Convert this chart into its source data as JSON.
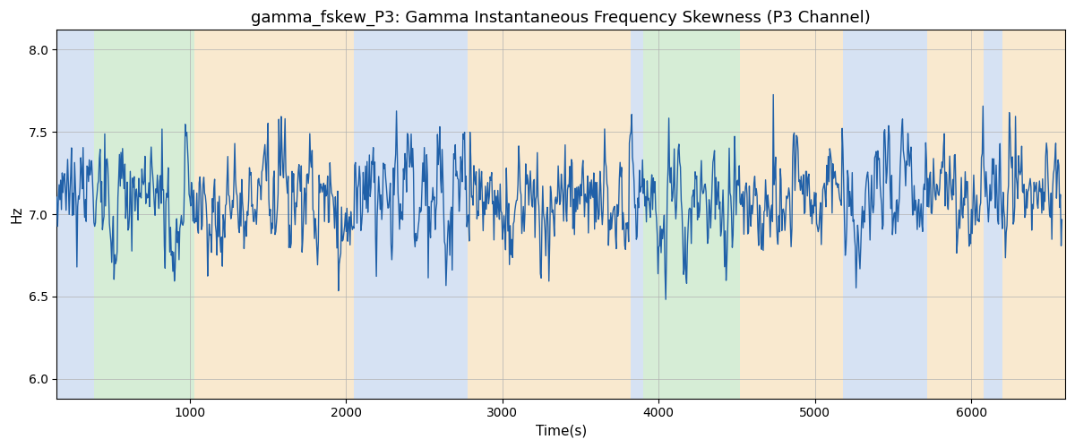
{
  "title": "gamma_fskew_P3: Gamma Instantaneous Frequency Skewness (P3 Channel)",
  "xlabel": "Time(s)",
  "ylabel": "Hz",
  "xlim": [
    150,
    6600
  ],
  "ylim": [
    5.88,
    8.12
  ],
  "yticks": [
    6.0,
    6.5,
    7.0,
    7.5,
    8.0
  ],
  "xticks": [
    1000,
    2000,
    3000,
    4000,
    5000,
    6000
  ],
  "line_color": "#2060a8",
  "line_width": 1.0,
  "title_fontsize": 13,
  "label_fontsize": 11,
  "tick_fontsize": 10,
  "grid_color": "#b0b0b0",
  "grid_alpha": 0.7,
  "regions": [
    {
      "start": 150,
      "end": 390,
      "color": "#aec6e8",
      "alpha": 0.5
    },
    {
      "start": 390,
      "end": 1030,
      "color": "#aedcae",
      "alpha": 0.5
    },
    {
      "start": 1030,
      "end": 2050,
      "color": "#f5d5a0",
      "alpha": 0.5
    },
    {
      "start": 2050,
      "end": 2780,
      "color": "#aec6e8",
      "alpha": 0.5
    },
    {
      "start": 2780,
      "end": 3820,
      "color": "#f5d5a0",
      "alpha": 0.5
    },
    {
      "start": 3820,
      "end": 3900,
      "color": "#aec6e8",
      "alpha": 0.5
    },
    {
      "start": 3900,
      "end": 4520,
      "color": "#aedcae",
      "alpha": 0.5
    },
    {
      "start": 4520,
      "end": 5180,
      "color": "#f5d5a0",
      "alpha": 0.5
    },
    {
      "start": 5180,
      "end": 5720,
      "color": "#aec6e8",
      "alpha": 0.5
    },
    {
      "start": 5720,
      "end": 6080,
      "color": "#f5d5a0",
      "alpha": 0.5
    },
    {
      "start": 6080,
      "end": 6200,
      "color": "#aec6e8",
      "alpha": 0.5
    },
    {
      "start": 6200,
      "end": 6600,
      "color": "#f5d5a0",
      "alpha": 0.5
    }
  ],
  "seed": 1234,
  "n_points": 1300,
  "t_start": 150,
  "t_end": 6580,
  "base_mean": 7.08,
  "ar_coef": 0.55,
  "noise_std": 0.14,
  "spike_prob": 0.03,
  "spike_mag": 0.45
}
